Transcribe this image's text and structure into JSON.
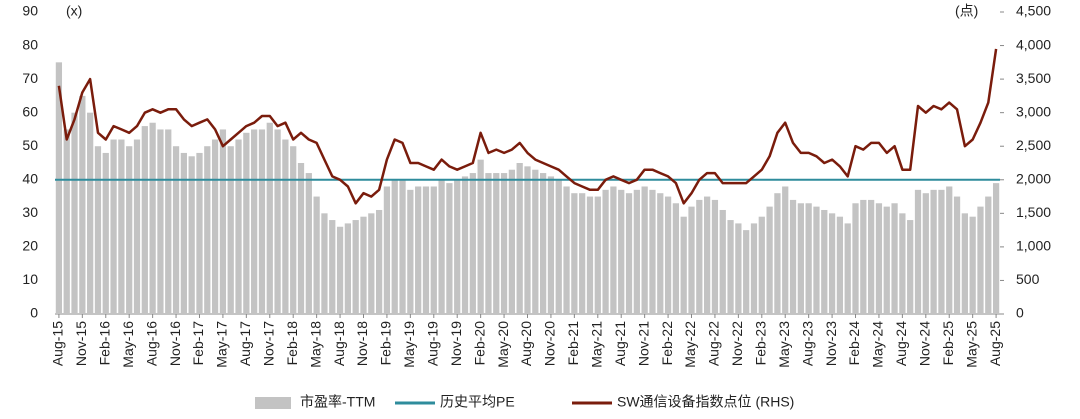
{
  "chart_data": {
    "type": "bar",
    "y_unit": "(x)",
    "y2_unit": "(点)",
    "categories": [
      "Aug-15",
      null,
      null,
      "Nov-15",
      null,
      null,
      "Feb-16",
      null,
      null,
      "May-16",
      null,
      null,
      "Aug-16",
      null,
      null,
      "Nov-16",
      null,
      null,
      "Feb-17",
      null,
      null,
      "May-17",
      null,
      null,
      "Aug-17",
      null,
      null,
      "Nov-17",
      null,
      null,
      "Feb-18",
      null,
      null,
      "May-18",
      null,
      null,
      "Aug-18",
      null,
      null,
      "Nov-18",
      null,
      null,
      "Feb-19",
      null,
      null,
      "May-19",
      null,
      null,
      "Aug-19",
      null,
      null,
      "Nov-19",
      null,
      null,
      "Feb-20",
      null,
      null,
      "May-20",
      null,
      null,
      "Aug-20",
      null,
      null,
      "Nov-20",
      null,
      null,
      "Feb-21",
      null,
      null,
      "May-21",
      null,
      null,
      "Aug-21",
      null,
      null,
      "Nov-21",
      null,
      null,
      "Feb-22",
      null,
      null,
      "May-22",
      null,
      null,
      "Aug-22",
      null,
      null,
      "Nov-22",
      null,
      null,
      "Feb-23",
      null,
      null,
      "May-23",
      null,
      null,
      "Aug-23",
      null,
      null,
      "Nov-23",
      null,
      null,
      "Feb-24",
      null,
      null,
      "May-24",
      null,
      null,
      "Aug-24",
      null,
      null,
      "Nov-24",
      null,
      null,
      "Feb-25",
      null,
      null,
      "May-25",
      null,
      null,
      "Aug-25"
    ],
    "series": [
      {
        "name": "市盈率-TTM",
        "type": "bar",
        "color": "#c3c3c3",
        "values": [
          75,
          55,
          60,
          65,
          60,
          50,
          48,
          52,
          52,
          50,
          52,
          56,
          57,
          55,
          55,
          50,
          48,
          47,
          48,
          50,
          52,
          55,
          50,
          52,
          54,
          55,
          55,
          57,
          55,
          52,
          50,
          45,
          42,
          35,
          30,
          28,
          26,
          27,
          28,
          29,
          30,
          31,
          38,
          40,
          40,
          37,
          38,
          38,
          38,
          40,
          39,
          40,
          41,
          42,
          46,
          42,
          42,
          42,
          43,
          45,
          44,
          43,
          42,
          41,
          40,
          38,
          36,
          36,
          35,
          35,
          37,
          38,
          37,
          36,
          37,
          38,
          37,
          36,
          35,
          33,
          29,
          32,
          34,
          35,
          34,
          31,
          28,
          27,
          25,
          27,
          29,
          32,
          36,
          38,
          34,
          33,
          33,
          32,
          31,
          30,
          29,
          27,
          33,
          34,
          34,
          33,
          32,
          33,
          30,
          28,
          37,
          36,
          37,
          37,
          38,
          35,
          30,
          29,
          32,
          35,
          39
        ]
      },
      {
        "name": "历史平均PE",
        "type": "hline",
        "color": "#2e8c9c",
        "value": 40
      },
      {
        "name": "SW通信设备指数点位 (RHS)",
        "type": "line",
        "axis": "y2",
        "color": "#7a1c0c",
        "values": [
          3400,
          2600,
          2900,
          3300,
          3500,
          2700,
          2600,
          2800,
          2750,
          2700,
          2800,
          3000,
          3050,
          3000,
          3050,
          3050,
          2900,
          2800,
          2850,
          2900,
          2750,
          2500,
          2600,
          2700,
          2800,
          2850,
          2950,
          2950,
          2800,
          2850,
          2600,
          2700,
          2600,
          2550,
          2300,
          2050,
          2000,
          1900,
          1650,
          1800,
          1750,
          1850,
          2300,
          2600,
          2550,
          2250,
          2250,
          2200,
          2150,
          2300,
          2200,
          2150,
          2200,
          2250,
          2700,
          2400,
          2450,
          2400,
          2450,
          2550,
          2400,
          2300,
          2250,
          2200,
          2150,
          2050,
          1950,
          1900,
          1850,
          1850,
          2000,
          2050,
          2000,
          1950,
          2000,
          2150,
          2150,
          2100,
          2050,
          1950,
          1650,
          1800,
          2000,
          2100,
          2100,
          1950,
          1950,
          1950,
          1950,
          2050,
          2150,
          2350,
          2700,
          2850,
          2550,
          2400,
          2400,
          2350,
          2250,
          2300,
          2200,
          2050,
          2500,
          2450,
          2550,
          2550,
          2400,
          2500,
          2150,
          2150,
          3100,
          3000,
          3100,
          3050,
          3150,
          3050,
          2500,
          2600,
          2850,
          3150,
          3950
        ]
      }
    ],
    "ylim": [
      0,
      90
    ],
    "yticks": [
      0,
      10,
      20,
      30,
      40,
      50,
      60,
      70,
      80,
      90
    ],
    "y2lim": [
      0,
      4500
    ],
    "y2ticks": [
      0,
      {
        "value": 500,
        "label": "500"
      },
      {
        "value": 1000,
        "label": "1,000"
      },
      {
        "value": 1500,
        "label": "1,500"
      },
      {
        "value": 2000,
        "label": "2,000"
      },
      {
        "value": 2500,
        "label": "2,500"
      },
      {
        "value": 3000,
        "label": "3,000"
      },
      {
        "value": 3500,
        "label": "3,500"
      },
      {
        "value": 4000,
        "label": "4,000"
      },
      {
        "value": 4500,
        "label": "4,500"
      }
    ],
    "legend": "bottom"
  }
}
